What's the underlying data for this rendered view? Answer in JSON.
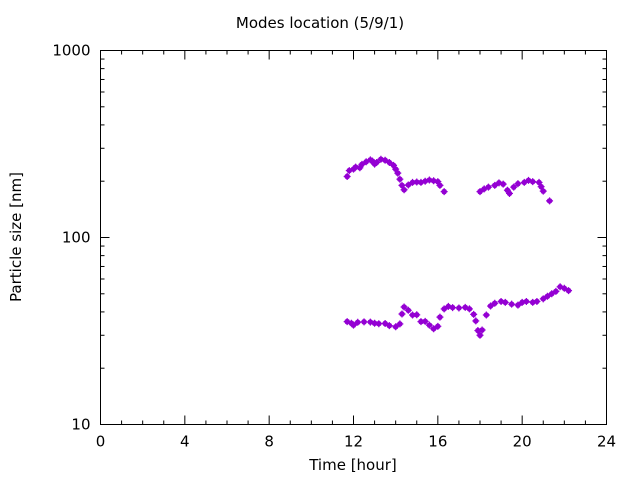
{
  "chart_data": {
    "type": "scatter",
    "title": "Modes location (5/9/1)",
    "xlabel": "Time [hour]",
    "ylabel": "Particle size [nm]",
    "xlim": [
      0,
      24
    ],
    "ylim": [
      10,
      1000
    ],
    "y_scale": "log",
    "x_ticks": [
      "0",
      "4",
      "8",
      "12",
      "16",
      "20",
      "24"
    ],
    "y_ticks": [
      "10",
      "100",
      "1000"
    ],
    "grid": false,
    "legend": "none",
    "marker_color": "#9400d3",
    "series": [
      {
        "points": [
          [
            11.7,
            212
          ],
          [
            11.8,
            228
          ],
          [
            12.0,
            232
          ],
          [
            12.1,
            238
          ],
          [
            12.3,
            236
          ],
          [
            12.4,
            246
          ],
          [
            12.6,
            254
          ],
          [
            12.8,
            260
          ],
          [
            12.9,
            256
          ],
          [
            13.0,
            247
          ],
          [
            13.1,
            252
          ],
          [
            13.3,
            262
          ],
          [
            13.5,
            259
          ],
          [
            13.7,
            252
          ],
          [
            13.9,
            243
          ],
          [
            14.0,
            232
          ],
          [
            14.1,
            221
          ],
          [
            14.2,
            205
          ],
          [
            14.3,
            190
          ],
          [
            14.4,
            180
          ],
          [
            14.6,
            191
          ],
          [
            14.8,
            197
          ],
          [
            15.0,
            198
          ],
          [
            15.2,
            197
          ],
          [
            15.4,
            200
          ],
          [
            15.6,
            203
          ],
          [
            15.8,
            201
          ],
          [
            16.0,
            199
          ],
          [
            16.1,
            190
          ],
          [
            16.3,
            176
          ],
          [
            18.0,
            176
          ],
          [
            18.2,
            182
          ],
          [
            18.4,
            186
          ],
          [
            18.7,
            190
          ],
          [
            18.9,
            196
          ],
          [
            19.1,
            193
          ],
          [
            19.3,
            179
          ],
          [
            19.4,
            172
          ],
          [
            19.6,
            186
          ],
          [
            19.8,
            194
          ],
          [
            20.1,
            197
          ],
          [
            20.3,
            202
          ],
          [
            20.5,
            199
          ],
          [
            20.8,
            197
          ],
          [
            20.9,
            187
          ],
          [
            21.0,
            177
          ],
          [
            21.3,
            157
          ]
        ]
      },
      {
        "points": [
          [
            11.7,
            35.5
          ],
          [
            11.9,
            34.8
          ],
          [
            12.0,
            34.0
          ],
          [
            12.2,
            35.2
          ],
          [
            12.5,
            35.4
          ],
          [
            12.8,
            35.3
          ],
          [
            13.0,
            34.8
          ],
          [
            13.2,
            34.6
          ],
          [
            13.5,
            34.7
          ],
          [
            13.7,
            33.8
          ],
          [
            14.0,
            33.3
          ],
          [
            14.2,
            34.5
          ],
          [
            14.3,
            39.0
          ],
          [
            14.4,
            42.5
          ],
          [
            14.6,
            40.8
          ],
          [
            14.8,
            38.5
          ],
          [
            15.0,
            38.6
          ],
          [
            15.2,
            35.5
          ],
          [
            15.4,
            35.6
          ],
          [
            15.6,
            34.0
          ],
          [
            15.8,
            32.5
          ],
          [
            16.0,
            33.5
          ],
          [
            16.1,
            37.5
          ],
          [
            16.3,
            41.5
          ],
          [
            16.5,
            42.8
          ],
          [
            16.7,
            42.2
          ],
          [
            17.0,
            42.0
          ],
          [
            17.3,
            42.3
          ],
          [
            17.5,
            41.5
          ],
          [
            17.7,
            38.8
          ],
          [
            17.8,
            35.8
          ],
          [
            17.9,
            31.8
          ],
          [
            18.0,
            30.0
          ],
          [
            18.1,
            32.0
          ],
          [
            18.3,
            38.5
          ],
          [
            18.5,
            43.0
          ],
          [
            18.7,
            44.5
          ],
          [
            19.0,
            45.5
          ],
          [
            19.2,
            45.0
          ],
          [
            19.5,
            44.0
          ],
          [
            19.8,
            43.5
          ],
          [
            20.0,
            45.0
          ],
          [
            20.2,
            45.5
          ],
          [
            20.5,
            45.0
          ],
          [
            20.7,
            45.5
          ],
          [
            21.0,
            47.0
          ],
          [
            21.2,
            48.5
          ],
          [
            21.4,
            50.0
          ],
          [
            21.6,
            51.5
          ],
          [
            21.8,
            54.5
          ],
          [
            22.0,
            53.5
          ],
          [
            22.2,
            52.0
          ]
        ]
      }
    ]
  }
}
